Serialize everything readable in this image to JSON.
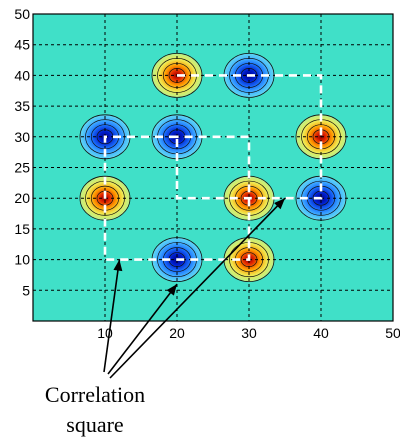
{
  "chart_data": {
    "type": "contour",
    "xlim": [
      0,
      50
    ],
    "ylim": [
      0,
      50
    ],
    "x_ticks": [
      10,
      20,
      30,
      40,
      50
    ],
    "y_ticks": [
      5,
      10,
      15,
      20,
      25,
      30,
      35,
      40,
      45,
      50
    ],
    "grid": true,
    "background_color": "#40e0c8",
    "peaks": [
      {
        "x": 20,
        "y": 40,
        "sign": "positive"
      },
      {
        "x": 30,
        "y": 40,
        "sign": "negative"
      },
      {
        "x": 10,
        "y": 30,
        "sign": "negative"
      },
      {
        "x": 20,
        "y": 30,
        "sign": "negative"
      },
      {
        "x": 40,
        "y": 30,
        "sign": "positive"
      },
      {
        "x": 10,
        "y": 20,
        "sign": "positive"
      },
      {
        "x": 30,
        "y": 20,
        "sign": "positive"
      },
      {
        "x": 40,
        "y": 20,
        "sign": "negative"
      },
      {
        "x": 20,
        "y": 10,
        "sign": "negative"
      },
      {
        "x": 30,
        "y": 10,
        "sign": "positive"
      }
    ],
    "correlation_paths": [
      [
        [
          20,
          40
        ],
        [
          40,
          40
        ],
        [
          40,
          20
        ],
        [
          20,
          20
        ],
        [
          20,
          30
        ]
      ],
      [
        [
          20,
          30
        ],
        [
          10,
          30
        ],
        [
          10,
          10
        ],
        [
          30,
          10
        ],
        [
          30,
          30
        ],
        [
          20,
          30
        ]
      ]
    ],
    "annotation": {
      "lines": [
        "Correlation",
        "square"
      ],
      "arrow_targets": [
        [
          12,
          10
        ],
        [
          20,
          6
        ],
        [
          35,
          20
        ]
      ]
    }
  }
}
